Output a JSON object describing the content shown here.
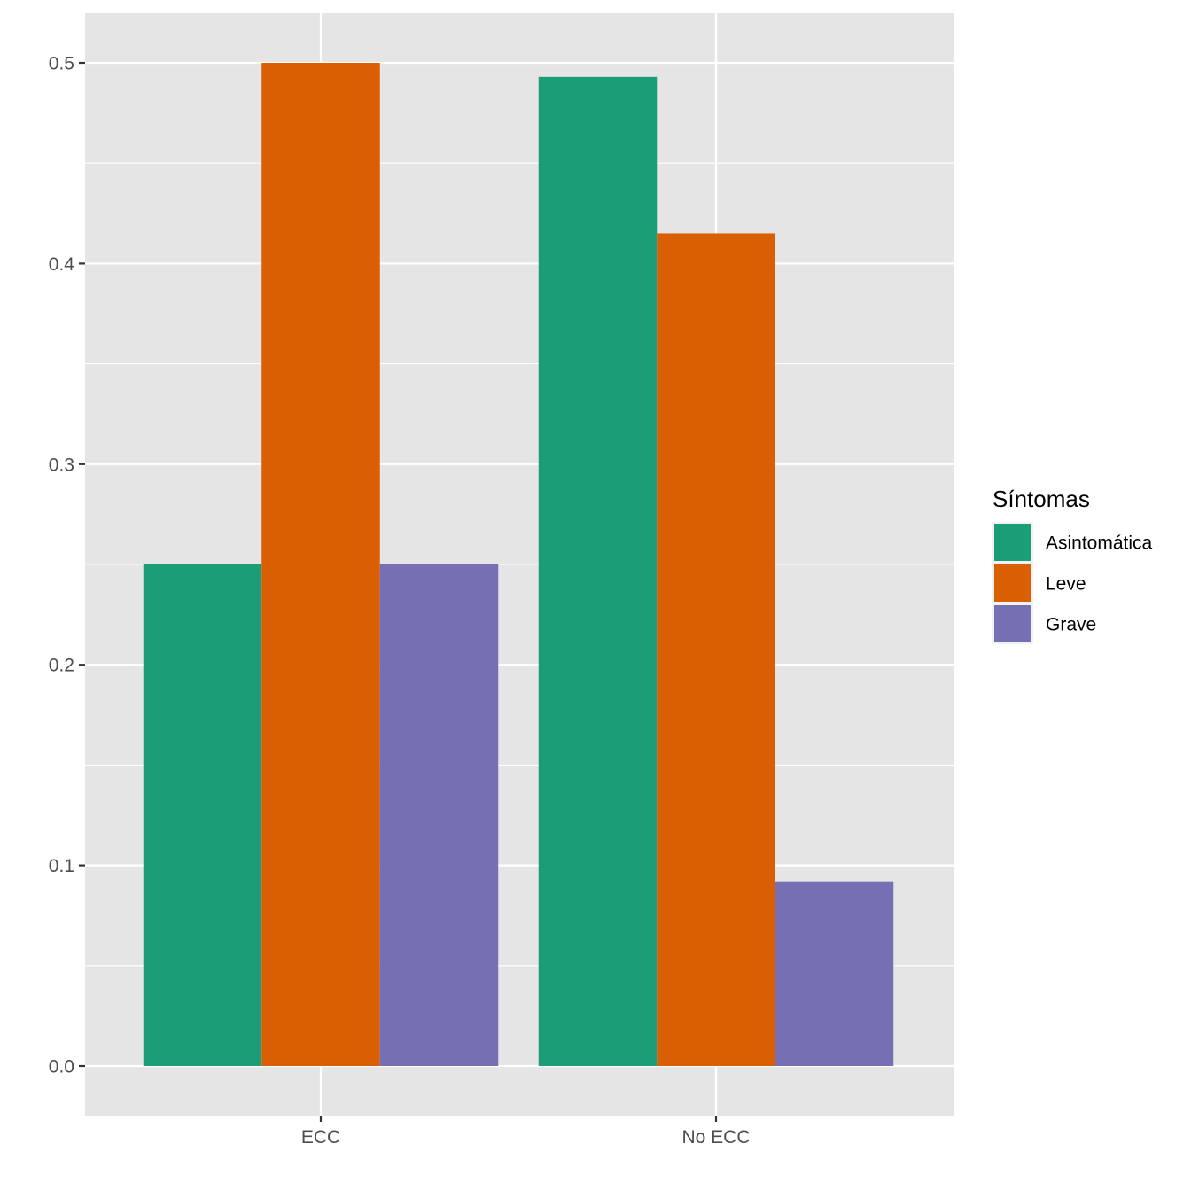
{
  "chart_data": {
    "type": "bar",
    "title": "",
    "xlabel": "",
    "ylabel": "",
    "categories": [
      "ECC",
      "No ECC"
    ],
    "series": [
      {
        "name": "Asintomática",
        "color": "#1b9e77",
        "values": [
          0.25,
          0.493
        ]
      },
      {
        "name": "Leve",
        "color": "#d95f02",
        "values": [
          0.5,
          0.415
        ]
      },
      {
        "name": "Grave",
        "color": "#7570b3",
        "values": [
          0.25,
          0.092
        ]
      }
    ],
    "ylim": [
      -0.025,
      0.525
    ],
    "y_ticks": [
      0.0,
      0.1,
      0.2,
      0.3,
      0.4,
      0.5
    ],
    "y_tick_labels": [
      "0.0",
      "0.1",
      "0.2",
      "0.3",
      "0.4",
      "0.5"
    ],
    "legend": {
      "title": "Síntomas",
      "placement": "right"
    },
    "grid": true,
    "panel_background": "#e5e5e5",
    "gridline_color": "#ffffff"
  }
}
